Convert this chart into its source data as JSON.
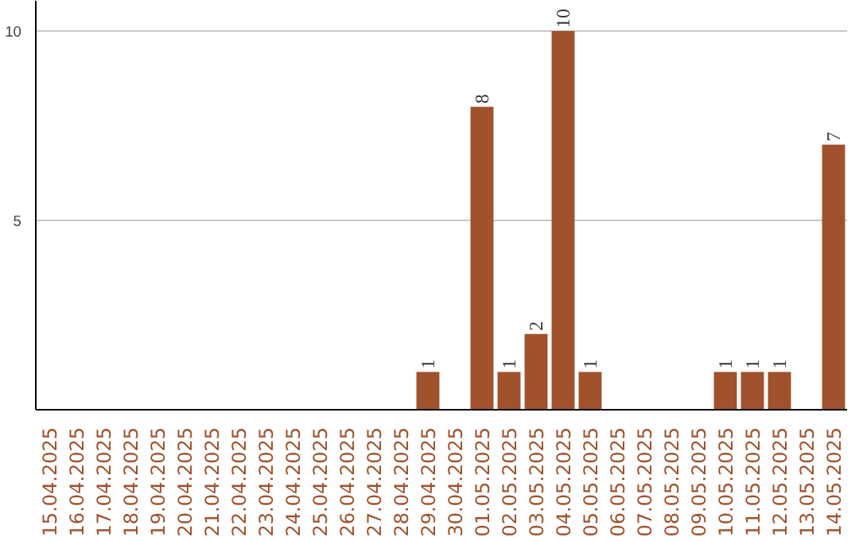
{
  "chart_data": {
    "type": "bar",
    "categories": [
      "15.04.2025",
      "16.04.2025",
      "17.04.2025",
      "18.04.2025",
      "19.04.2025",
      "20.04.2025",
      "21.04.2025",
      "22.04.2025",
      "23.04.2025",
      "24.04.2025",
      "25.04.2025",
      "26.04.2025",
      "27.04.2025",
      "28.04.2025",
      "29.04.2025",
      "30.04.2025",
      "01.05.2025",
      "02.05.2025",
      "03.05.2025",
      "04.05.2025",
      "05.05.2025",
      "06.05.2025",
      "07.05.2025",
      "08.05.2025",
      "09.05.2025",
      "10.05.2025",
      "11.05.2025",
      "12.05.2025",
      "13.05.2025",
      "14.05.2025"
    ],
    "values": [
      0,
      0,
      0,
      0,
      0,
      0,
      0,
      0,
      0,
      0,
      0,
      0,
      0,
      0,
      1,
      0,
      8,
      1,
      2,
      10,
      1,
      0,
      0,
      0,
      0,
      1,
      1,
      1,
      0,
      7
    ],
    "value_labels": [
      null,
      null,
      null,
      null,
      null,
      null,
      null,
      null,
      null,
      null,
      null,
      null,
      null,
      null,
      "1",
      null,
      "8",
      "1",
      "2",
      "10",
      "1",
      null,
      null,
      null,
      null,
      "1",
      "1",
      "1",
      null,
      "7"
    ],
    "color": "#a0522d",
    "ylim": [
      0,
      10.8
    ],
    "yticks": [
      5,
      10
    ],
    "grid": "y"
  }
}
